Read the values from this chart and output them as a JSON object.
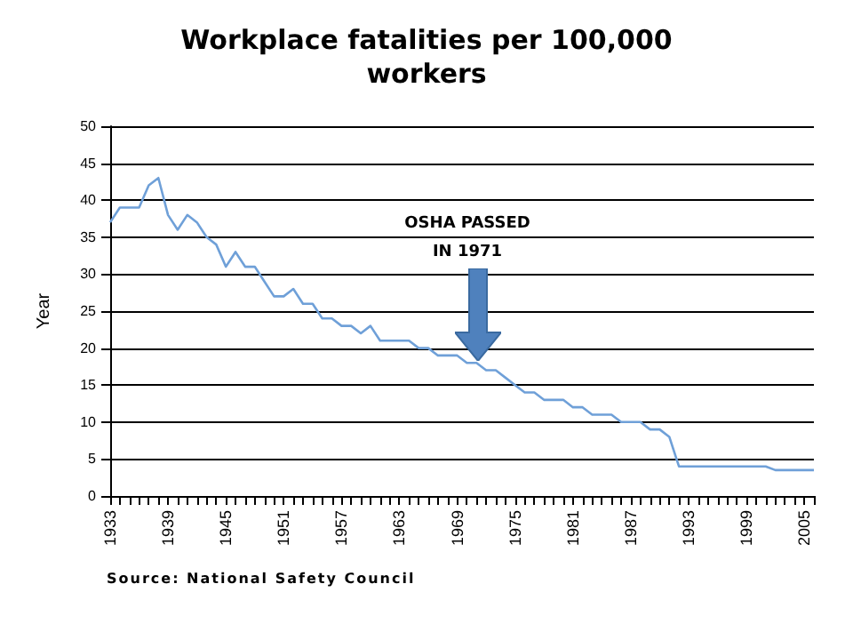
{
  "chart_data": {
    "type": "line",
    "title": "Workplace fatalities per 100,000\nworkers",
    "ylabel": "Year",
    "categories": [
      "1933",
      null,
      null,
      null,
      null,
      null,
      "1939",
      null,
      null,
      null,
      null,
      null,
      "1945",
      null,
      null,
      null,
      null,
      null,
      "1951",
      null,
      null,
      null,
      null,
      null,
      "1957",
      null,
      null,
      null,
      null,
      null,
      "1963",
      null,
      null,
      null,
      null,
      null,
      "1969",
      null,
      null,
      null,
      null,
      null,
      "1975",
      null,
      null,
      null,
      null,
      null,
      "1981",
      null,
      null,
      null,
      null,
      null,
      "1987",
      null,
      null,
      null,
      null,
      null,
      "1993",
      null,
      null,
      null,
      null,
      null,
      "1999",
      null,
      null,
      null,
      null,
      null,
      "2005",
      null
    ],
    "series": [
      {
        "color": "#6fa0d8",
        "values": [
          37,
          39,
          39,
          39,
          42,
          43,
          38,
          36,
          38,
          37,
          35,
          34,
          31,
          33,
          31,
          31,
          29,
          27,
          27,
          28,
          26,
          26,
          24,
          24,
          23,
          23,
          22,
          23,
          21,
          21,
          21,
          21,
          20,
          20,
          19,
          19,
          19,
          18,
          18,
          17,
          17,
          16,
          15,
          14,
          14,
          13,
          13,
          13,
          12,
          12,
          11,
          11,
          11,
          10,
          10,
          10,
          9,
          9,
          8,
          4,
          4,
          4,
          4,
          4,
          4,
          4,
          4,
          4,
          4,
          3.5,
          3.5,
          3.5,
          3.5,
          3.5
        ]
      }
    ],
    "ylim": [
      0,
      50
    ],
    "yticks": [
      0,
      5,
      10,
      15,
      20,
      25,
      30,
      35,
      40,
      45,
      50
    ],
    "grid": "y",
    "marker": "none",
    "line_style": "solid",
    "annotations": [
      "OSHA PASSED\nIN 1971",
      "Source: National Safety Council"
    ]
  }
}
